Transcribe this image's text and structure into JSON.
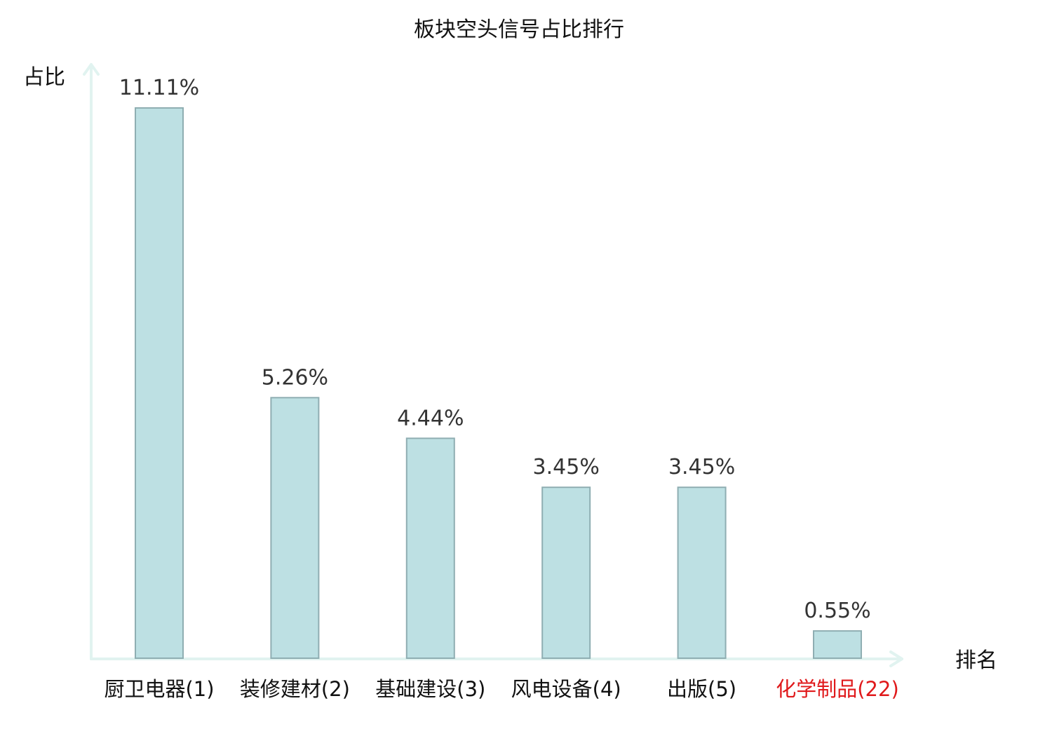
{
  "chart_data": {
    "type": "bar",
    "title": "板块空头信号占比排行",
    "ylabel": "占比",
    "xlabel": "排名",
    "categories": [
      "厨卫电器(1)",
      "装修建材(2)",
      "基础建设(3)",
      "风电设备(4)",
      "出版(5)",
      "化学制品(22)"
    ],
    "values": [
      11.11,
      5.26,
      4.44,
      3.45,
      3.45,
      0.55
    ],
    "value_labels": [
      "11.11%",
      "5.26%",
      "4.44%",
      "3.45%",
      "3.45%",
      "0.55%"
    ],
    "highlight_index": 5,
    "ylim": [
      0,
      11.11
    ],
    "grid": false,
    "legend": "none"
  },
  "colors": {
    "bar_fill": "#bde0e3",
    "bar_stroke": "#8faeb2",
    "axis": "#e1f3f0",
    "highlight_text": "#e0191b"
  }
}
